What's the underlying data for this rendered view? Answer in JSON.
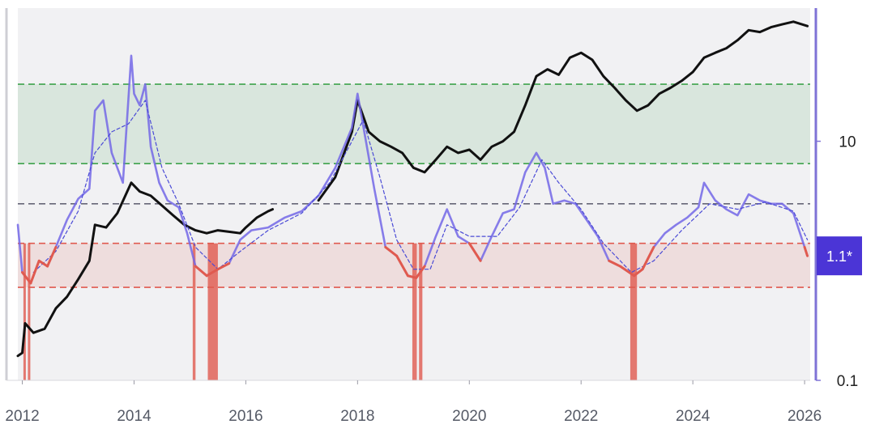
{
  "chart_data": {
    "type": "line",
    "title": "",
    "xlabel": "",
    "ylabel": "",
    "x_ticks": [
      "2012",
      "2014",
      "2016",
      "2018",
      "2020",
      "2022",
      "2024",
      "2026"
    ],
    "y_ticks": [
      "0.1",
      "10"
    ],
    "x_range": [
      2011.92,
      2026.1
    ],
    "y_range_log": [
      0.1,
      130
    ],
    "scale": "log",
    "grid": false,
    "current_value_badge": "1.1*",
    "colors": {
      "ratio_line": "#7367e6",
      "ratio_ma": "#4a4ad6",
      "price_line": "#111111",
      "bottom_band": "#e05a4f",
      "top_band": "#3fa34d",
      "mid_line": "#666677",
      "badge": "#4b35d6",
      "axis": "#7f73d6"
    },
    "bands": {
      "top_zone": [
        6.5,
        30
      ],
      "mid_line": 3.0,
      "bottom_zone": [
        0.6,
        1.4
      ]
    },
    "bottom_signal_windows": [
      [
        2012.02,
        2012.05
      ],
      [
        2012.1,
        2012.13
      ],
      [
        2015.05,
        2015.1
      ],
      [
        2015.32,
        2015.5
      ],
      [
        2018.98,
        2019.06
      ],
      [
        2019.1,
        2019.16
      ],
      [
        2022.88,
        2023.0
      ]
    ],
    "series": [
      {
        "points": [
          [
            2011.92,
            2.0
          ],
          [
            2012.0,
            0.8
          ],
          [
            2012.15,
            0.65
          ],
          [
            2012.3,
            1.0
          ],
          [
            2012.45,
            0.9
          ],
          [
            2012.6,
            1.3
          ],
          [
            2012.8,
            2.2
          ],
          [
            2013.0,
            3.3
          ],
          [
            2013.2,
            4.0
          ],
          [
            2013.3,
            18
          ],
          [
            2013.45,
            22
          ],
          [
            2013.6,
            8
          ],
          [
            2013.8,
            4.5
          ],
          [
            2013.95,
            52
          ],
          [
            2014.0,
            25
          ],
          [
            2014.1,
            20
          ],
          [
            2014.2,
            30
          ],
          [
            2014.3,
            9
          ],
          [
            2014.45,
            4.5
          ],
          [
            2014.6,
            3.2
          ],
          [
            2014.8,
            2.8
          ],
          [
            2014.95,
            1.7
          ],
          [
            2015.1,
            0.9
          ],
          [
            2015.3,
            0.75
          ],
          [
            2015.5,
            0.85
          ],
          [
            2015.7,
            0.95
          ],
          [
            2015.9,
            1.5
          ],
          [
            2016.1,
            1.8
          ],
          [
            2016.4,
            1.9
          ],
          [
            2016.7,
            2.3
          ],
          [
            2017.0,
            2.6
          ],
          [
            2017.3,
            3.5
          ],
          [
            2017.6,
            6
          ],
          [
            2017.9,
            13
          ],
          [
            2018.0,
            25
          ],
          [
            2018.15,
            10
          ],
          [
            2018.3,
            4
          ],
          [
            2018.5,
            1.3
          ],
          [
            2018.7,
            1.1
          ],
          [
            2018.9,
            0.75
          ],
          [
            2019.05,
            0.72
          ],
          [
            2019.2,
            0.9
          ],
          [
            2019.4,
            1.6
          ],
          [
            2019.6,
            2.7
          ],
          [
            2019.8,
            1.6
          ],
          [
            2020.0,
            1.4
          ],
          [
            2020.2,
            1.0
          ],
          [
            2020.4,
            1.6
          ],
          [
            2020.6,
            2.5
          ],
          [
            2020.8,
            2.7
          ],
          [
            2021.0,
            5.5
          ],
          [
            2021.2,
            8
          ],
          [
            2021.35,
            6
          ],
          [
            2021.5,
            3
          ],
          [
            2021.7,
            3.2
          ],
          [
            2021.9,
            3.0
          ],
          [
            2022.1,
            2.2
          ],
          [
            2022.3,
            1.6
          ],
          [
            2022.5,
            1.0
          ],
          [
            2022.7,
            0.9
          ],
          [
            2022.95,
            0.75
          ],
          [
            2023.1,
            0.85
          ],
          [
            2023.3,
            1.3
          ],
          [
            2023.5,
            1.7
          ],
          [
            2023.7,
            2.0
          ],
          [
            2023.9,
            2.3
          ],
          [
            2024.1,
            2.8
          ],
          [
            2024.2,
            4.5
          ],
          [
            2024.4,
            3.2
          ],
          [
            2024.6,
            2.7
          ],
          [
            2024.8,
            2.4
          ],
          [
            2025.0,
            3.6
          ],
          [
            2025.2,
            3.2
          ],
          [
            2025.4,
            3.0
          ],
          [
            2025.6,
            3.0
          ],
          [
            2025.8,
            2.5
          ],
          [
            2026.0,
            1.3
          ],
          [
            2026.05,
            1.1
          ]
        ]
      },
      {
        "points": [
          [
            2012.2,
            0.8
          ],
          [
            2012.6,
            1.2
          ],
          [
            2013.0,
            2.6
          ],
          [
            2013.3,
            8
          ],
          [
            2013.6,
            12
          ],
          [
            2013.9,
            14
          ],
          [
            2014.2,
            22
          ],
          [
            2014.5,
            6
          ],
          [
            2014.8,
            3
          ],
          [
            2015.1,
            1.3
          ],
          [
            2015.5,
            0.85
          ],
          [
            2015.9,
            1.2
          ],
          [
            2016.4,
            1.8
          ],
          [
            2017.0,
            2.5
          ],
          [
            2017.5,
            4.5
          ],
          [
            2017.9,
            10
          ],
          [
            2018.1,
            15
          ],
          [
            2018.4,
            5
          ],
          [
            2018.7,
            1.5
          ],
          [
            2019.0,
            0.85
          ],
          [
            2019.3,
            0.85
          ],
          [
            2019.6,
            2.0
          ],
          [
            2020.0,
            1.6
          ],
          [
            2020.5,
            1.6
          ],
          [
            2020.9,
            2.8
          ],
          [
            2021.3,
            7
          ],
          [
            2021.6,
            4.5
          ],
          [
            2022.0,
            2.7
          ],
          [
            2022.4,
            1.4
          ],
          [
            2022.9,
            0.8
          ],
          [
            2023.3,
            1.0
          ],
          [
            2023.8,
            1.8
          ],
          [
            2024.3,
            3.0
          ],
          [
            2024.8,
            2.7
          ],
          [
            2025.3,
            3.1
          ],
          [
            2025.8,
            2.6
          ],
          [
            2026.05,
            1.5
          ]
        ]
      },
      {
        "points": [
          [
            2011.92,
            0.16
          ],
          [
            2012.0,
            0.17
          ],
          [
            2012.05,
            0.3
          ],
          [
            2012.2,
            0.25
          ],
          [
            2012.4,
            0.27
          ],
          [
            2012.6,
            0.4
          ],
          [
            2012.8,
            0.5
          ],
          [
            2013.0,
            0.7
          ],
          [
            2013.2,
            1.0
          ],
          [
            2013.3,
            2.0
          ],
          [
            2013.5,
            1.9
          ],
          [
            2013.7,
            2.5
          ],
          [
            2013.95,
            4.5
          ],
          [
            2014.1,
            3.8
          ],
          [
            2014.3,
            3.5
          ],
          [
            2014.5,
            2.9
          ],
          [
            2014.7,
            2.4
          ],
          [
            2014.9,
            2.0
          ],
          [
            2015.1,
            1.8
          ],
          [
            2015.3,
            1.7
          ],
          [
            2015.5,
            1.8
          ],
          [
            2015.7,
            1.75
          ],
          [
            2015.9,
            1.7
          ],
          [
            2016.0,
            1.9
          ],
          [
            2016.2,
            2.3
          ],
          [
            2016.4,
            2.6
          ],
          [
            2016.48,
            2.7
          ],
          [
            null,
            null
          ],
          [
            2017.3,
            3.2
          ],
          [
            2017.6,
            5
          ],
          [
            2017.9,
            12
          ],
          [
            2018.0,
            22
          ],
          [
            2018.2,
            12
          ],
          [
            2018.4,
            10
          ],
          [
            2018.6,
            9
          ],
          [
            2018.8,
            8
          ],
          [
            2019.0,
            6
          ],
          [
            2019.2,
            5.5
          ],
          [
            2019.4,
            7
          ],
          [
            2019.6,
            9
          ],
          [
            2019.8,
            8
          ],
          [
            2020.0,
            8.5
          ],
          [
            2020.2,
            7
          ],
          [
            2020.4,
            9
          ],
          [
            2020.6,
            10
          ],
          [
            2020.8,
            12
          ],
          [
            2021.0,
            20
          ],
          [
            2021.2,
            35
          ],
          [
            2021.4,
            40
          ],
          [
            2021.6,
            36
          ],
          [
            2021.8,
            50
          ],
          [
            2022.0,
            55
          ],
          [
            2022.2,
            48
          ],
          [
            2022.4,
            35
          ],
          [
            2022.6,
            28
          ],
          [
            2022.8,
            22
          ],
          [
            2023.0,
            18
          ],
          [
            2023.2,
            20
          ],
          [
            2023.4,
            25
          ],
          [
            2023.6,
            28
          ],
          [
            2023.8,
            32
          ],
          [
            2024.0,
            38
          ],
          [
            2024.2,
            50
          ],
          [
            2024.4,
            55
          ],
          [
            2024.6,
            60
          ],
          [
            2024.8,
            70
          ],
          [
            2025.0,
            85
          ],
          [
            2025.2,
            82
          ],
          [
            2025.4,
            90
          ],
          [
            2025.6,
            95
          ],
          [
            2025.8,
            100
          ],
          [
            2026.05,
            92
          ]
        ]
      }
    ]
  }
}
